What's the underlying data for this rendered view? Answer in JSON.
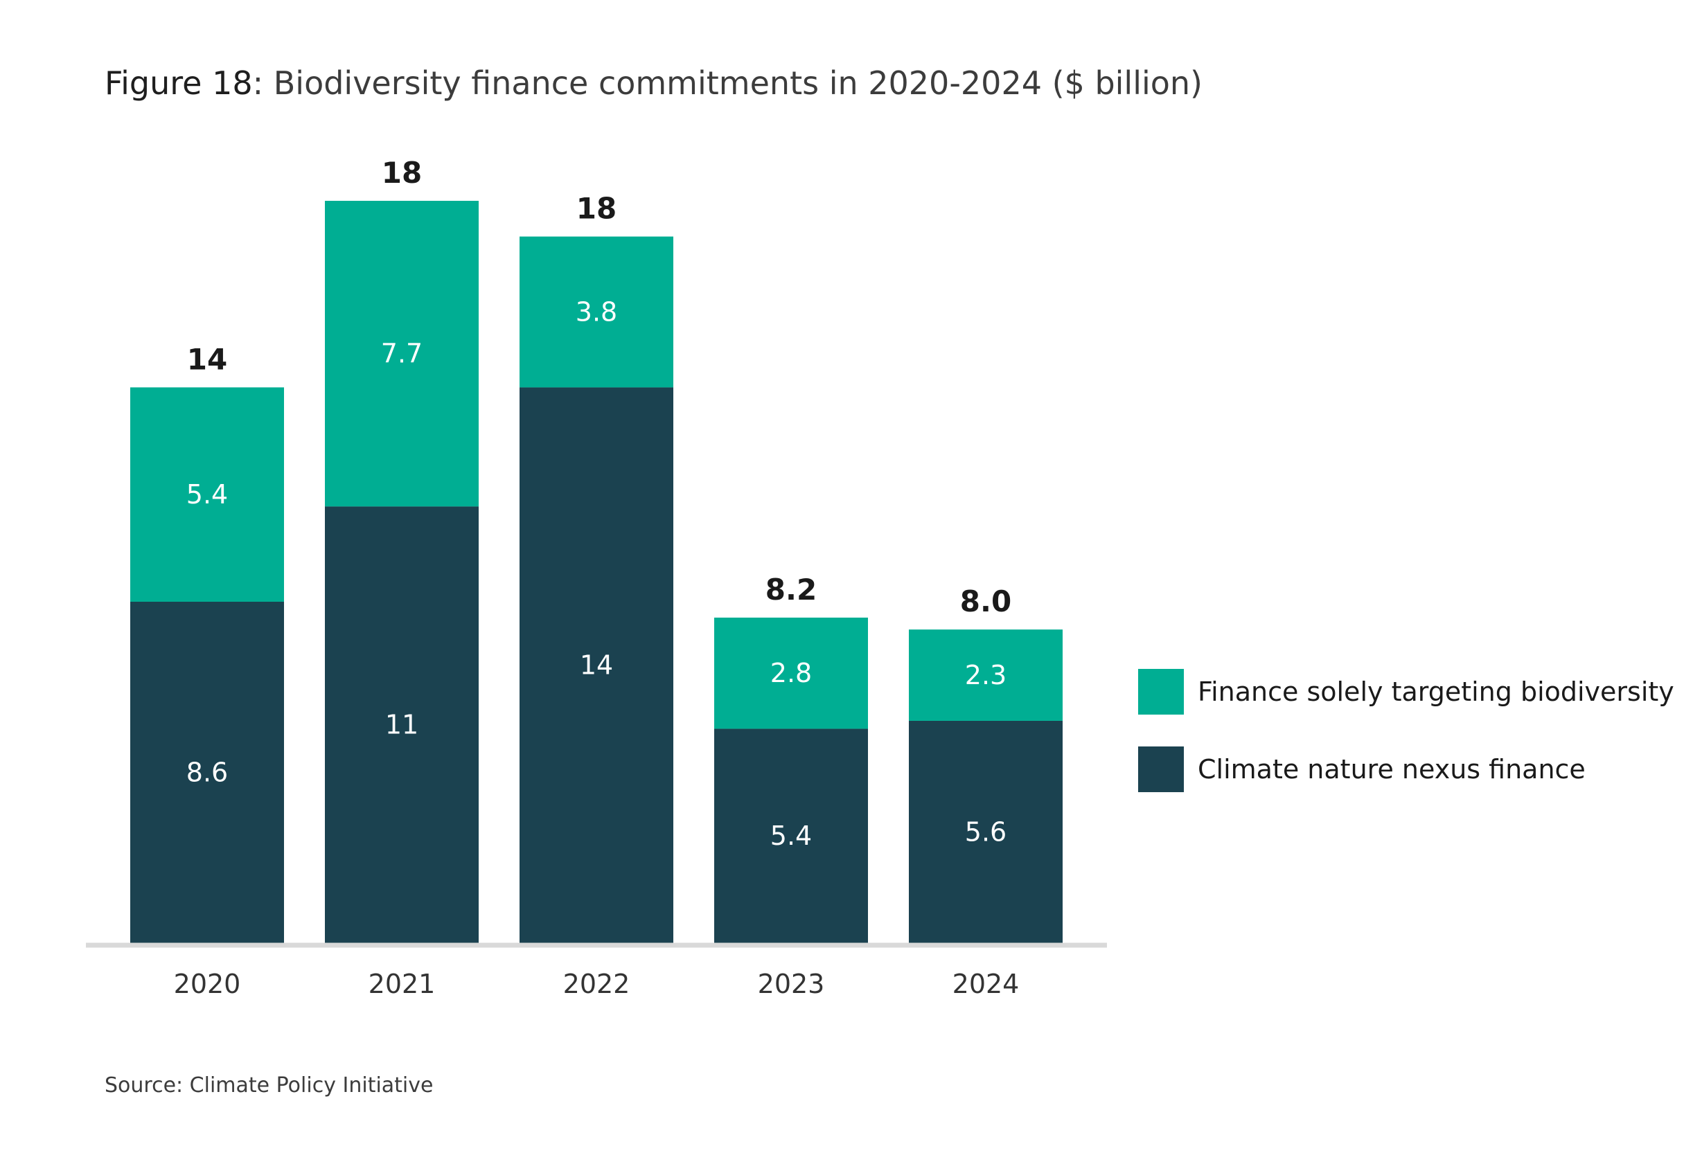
{
  "figure": {
    "label": "Figure 18",
    "title": ": Biodiversity finance commitments in 2020-2024 ($ billion)",
    "source": "Source: Climate Policy Initiative"
  },
  "chart_data": {
    "type": "bar",
    "stacked": true,
    "categories": [
      "2020",
      "2021",
      "2022",
      "2023",
      "2024"
    ],
    "series": [
      {
        "name": "Climate nature nexus finance",
        "values": [
          8.6,
          11,
          14,
          5.4,
          5.6
        ],
        "labels": [
          "8.6",
          "11",
          "14",
          "5.4",
          "5.6"
        ],
        "color": "#1b4250"
      },
      {
        "name": "Finance solely targeting biodiversity",
        "values": [
          5.4,
          7.7,
          3.8,
          2.8,
          2.3
        ],
        "labels": [
          "5.4",
          "7.7",
          "3.8",
          "2.8",
          "2.3"
        ],
        "color": "#00ae93"
      }
    ],
    "totals": [
      "14",
      "18",
      "18",
      "8.2",
      "8.0"
    ],
    "legend_order": [
      1,
      0
    ],
    "legend_position": "right",
    "ylim": [
      0,
      18.7
    ],
    "grid": false,
    "axis_color": "#d9d9d9"
  }
}
